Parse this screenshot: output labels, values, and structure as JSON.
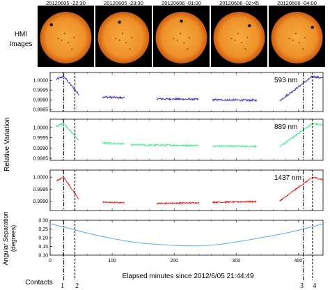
{
  "hmi_label": "HMI Images",
  "hmi_label_lines": [
    "HMI",
    "Images"
  ],
  "sun_images": [
    {
      "label": "20120605 -22:30"
    },
    {
      "label": "20120605 -23:30"
    },
    {
      "label": "20120606 -01:00"
    },
    {
      "label": "20120606 -02:45"
    },
    {
      "label": "20120606 -04:00"
    }
  ],
  "colors": {
    "sky_bg": "#000000",
    "sun_center": "#f7ab3c",
    "sun_edge": "#cc5a12",
    "series_593": "#4a2fb8",
    "series_889": "#3ef08a",
    "series_1437": "#e0201c",
    "separation": "#5aaee0"
  },
  "chart_data": [
    {
      "type": "line",
      "series": [
        {
          "name": "593 nm",
          "segments": [
            [
              10,
              47
            ],
            [
              85,
              120
            ],
            [
              172,
              240
            ],
            [
              262,
              333
            ],
            [
              370,
              440
            ]
          ]
        }
      ],
      "xlim": [
        0,
        440
      ],
      "ylim": [
        0.9984,
        1.0004
      ],
      "yticks": [
        "1.0000",
        "0.9995",
        "0.9990",
        "0.9985"
      ],
      "ytick_values": [
        1.0,
        0.9995,
        0.999,
        0.9985
      ],
      "contacts_x": [
        22,
        40,
        408,
        423
      ]
    },
    {
      "type": "line",
      "series": [
        {
          "name": "889 nm",
          "segments": [
            [
              10,
              47
            ],
            [
              85,
              120
            ],
            [
              130,
              240
            ],
            [
              262,
              333
            ],
            [
              370,
              440
            ]
          ]
        }
      ],
      "xlim": [
        0,
        440
      ],
      "ylim": [
        0.9984,
        1.0004
      ],
      "yticks": [
        "1.0000",
        "0.9995",
        "0.9990",
        "0.9985"
      ],
      "ytick_values": [
        1.0,
        0.9995,
        0.999,
        0.9985
      ],
      "ylabel": "Relative Variation",
      "contacts_x": [
        22,
        40,
        408,
        423
      ]
    },
    {
      "type": "line",
      "series": [
        {
          "name": "1437 nm",
          "segments": [
            [
              10,
              47
            ],
            [
              85,
              120
            ],
            [
              172,
              240
            ],
            [
              262,
              333
            ],
            [
              370,
              440
            ]
          ]
        }
      ],
      "xlim": [
        0,
        440
      ],
      "ylim": [
        0.9986,
        1.0003
      ],
      "yticks": [
        "1.0000",
        "0.9995",
        "0.9990"
      ],
      "ytick_values": [
        1.0,
        0.9995,
        0.999
      ],
      "contacts_x": [
        22,
        40,
        408,
        423
      ]
    },
    {
      "type": "line",
      "series": [
        {
          "x": [
            0,
            30,
            60,
            100,
            140,
            180,
            220,
            260,
            300,
            340,
            380,
            420,
            440
          ],
          "y": [
            0.28,
            0.255,
            0.225,
            0.195,
            0.17,
            0.16,
            0.152,
            0.155,
            0.175,
            0.2,
            0.225,
            0.26,
            0.28
          ]
        }
      ],
      "xlim": [
        0,
        440
      ],
      "ylim": [
        0.1,
        0.3
      ],
      "yticks": [
        "0.30",
        "0.25",
        "0.20",
        "0.15",
        "0.10"
      ],
      "ytick_values": [
        0.3,
        0.25,
        0.2,
        0.15,
        0.1
      ],
      "ylabel_lines": [
        "Angular Separation",
        "(degrees)"
      ],
      "xticks": [
        "0",
        "100",
        "200",
        "300",
        "400"
      ],
      "xtick_values": [
        0,
        100,
        200,
        300,
        400
      ],
      "xlabel": "Elapsed minutes since 2012/6/05 21:44:49",
      "contacts_x": [
        22,
        40,
        408,
        423
      ]
    }
  ],
  "contacts": {
    "label": "Contacts",
    "numbers": [
      "1",
      "2",
      "3",
      "4"
    ]
  }
}
